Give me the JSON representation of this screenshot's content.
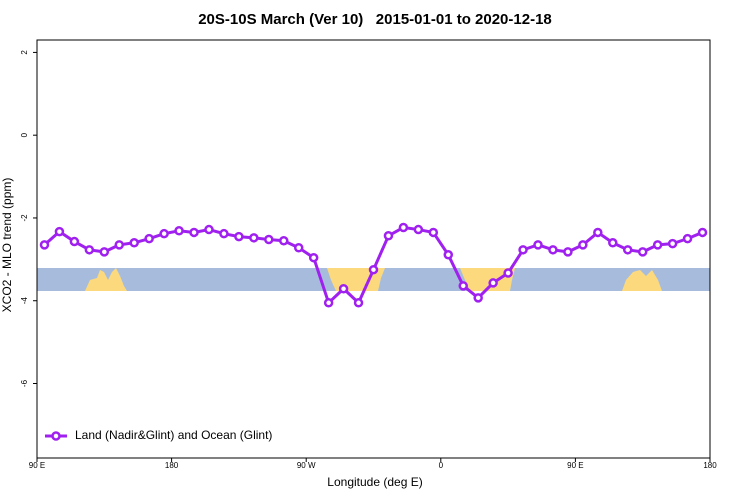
{
  "chart_data": {
    "type": "line",
    "title": "20S-10S March (Ver 10)   2015-01-01 to 2020-12-18",
    "xlabel": "Longitude (deg E)",
    "ylabel": "XCO2 - MLO trend (ppm)",
    "xlim": [
      90,
      540
    ],
    "ylim": [
      -7.8,
      2.3
    ],
    "xticks": [
      {
        "value": 90,
        "label": "90 E"
      },
      180,
      {
        "value": 270,
        "label": "90 W"
      },
      {
        "value": 360,
        "label": "0"
      },
      {
        "value": 450,
        "label": "90 E"
      },
      {
        "value": 540,
        "label": "180"
      }
    ],
    "yticks": [
      -6,
      -4,
      -2,
      0,
      2
    ],
    "legend": "bottomleft",
    "series": [
      {
        "name": "Land (Nadir&Glint) and Ocean (Glint)",
        "color": "#a020f0",
        "x": [
          95,
          105,
          115,
          125,
          135,
          145,
          155,
          165,
          175,
          185,
          195,
          205,
          215,
          225,
          235,
          245,
          255,
          265,
          275,
          285,
          295,
          305,
          315,
          325,
          335,
          345,
          355,
          365,
          375,
          385,
          395,
          405,
          415,
          425,
          435,
          445,
          455,
          465,
          475,
          485,
          495,
          505,
          515,
          525,
          535
        ],
        "values": [
          -2.65,
          -2.33,
          -2.57,
          -2.77,
          -2.82,
          -2.65,
          -2.6,
          -2.5,
          -2.38,
          -2.31,
          -2.35,
          -2.28,
          -2.38,
          -2.45,
          -2.48,
          -2.52,
          -2.55,
          -2.72,
          -2.96,
          -4.05,
          -3.71,
          -4.05,
          -3.25,
          -2.43,
          -2.23,
          -2.28,
          -2.35,
          -2.89,
          -3.64,
          -3.93,
          -3.57,
          -3.33,
          -2.77,
          -2.65,
          -2.77,
          -2.82,
          -2.65,
          -2.35,
          -2.6,
          -2.77,
          -2.82,
          -2.65,
          -2.62,
          -2.5,
          -2.35
        ]
      }
    ]
  }
}
